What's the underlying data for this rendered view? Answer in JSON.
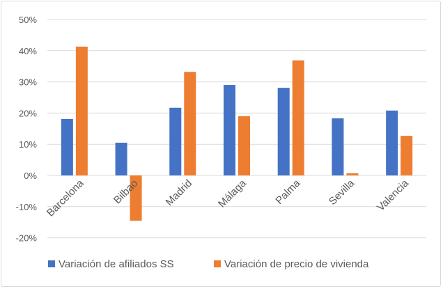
{
  "chart_data": {
    "type": "bar",
    "categories": [
      "Barcelona",
      "Bilbao",
      "Madrid",
      "Málaga",
      "Palma",
      "Sevilla",
      "Valencia"
    ],
    "series": [
      {
        "name": "Variación de afiliados SS",
        "color": "#4472c4",
        "values": [
          18.1,
          10.5,
          21.7,
          29.0,
          28.1,
          18.3,
          20.8
        ]
      },
      {
        "name": "Variación de precio de vivienda",
        "color": "#ed7d31",
        "values": [
          41.3,
          -14.5,
          33.2,
          19.0,
          36.9,
          0.7,
          12.7
        ]
      }
    ],
    "yticks": [
      "-20%",
      "-10%",
      "0%",
      "10%",
      "20%",
      "30%",
      "40%",
      "50%"
    ],
    "ylim": [
      -20,
      50
    ],
    "grid": true,
    "legend": "bottom"
  }
}
